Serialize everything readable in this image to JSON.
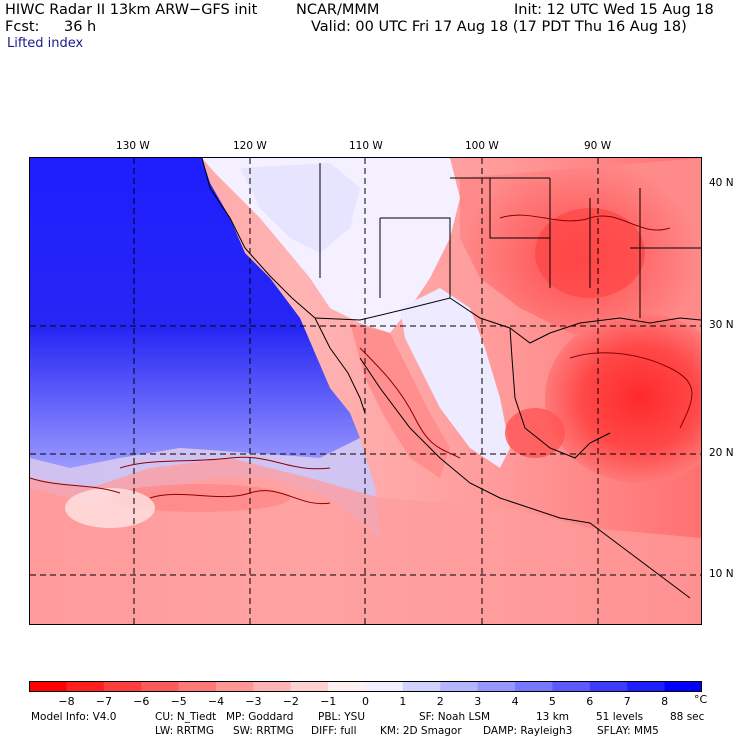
{
  "header": {
    "model": "HIWC Radar II 13km ARW−GFS init",
    "org": "NCAR/MMM",
    "init": "Init: 12 UTC Wed 15 Aug 18",
    "fcst_label": "Fcst:",
    "fcst_value": "36 h",
    "valid": "Valid: 00 UTC Fri 17 Aug 18 (17 PDT Thu 16 Aug 18)",
    "field": "Lifted index"
  },
  "map": {
    "lon_labels": [
      "130 W",
      "120 W",
      "110 W",
      "100 W",
      "90 W"
    ],
    "lat_labels": [
      "40 N",
      "30 N",
      "20 N",
      "10 N"
    ]
  },
  "colorbar": {
    "labels": [
      "−8",
      "−7",
      "−6",
      "−5",
      "−4",
      "−3",
      "−2",
      "−1",
      "0",
      "1",
      "2",
      "3",
      "4",
      "5",
      "6",
      "7",
      "8"
    ],
    "unit": "°C",
    "colors": [
      "#ff0000",
      "#ff1f1f",
      "#ff3d3d",
      "#ff5a5a",
      "#ff7878",
      "#ff9696",
      "#ffb4b4",
      "#ffd2d2",
      "#fff0f0",
      "#f0f0ff",
      "#d2d2ff",
      "#b4b4ff",
      "#9696ff",
      "#7878ff",
      "#5a5aff",
      "#3c3cff",
      "#1e1eff",
      "#0000ff"
    ]
  },
  "footer": {
    "line1": [
      "Model Info: V4.0",
      "CU: N_Tiedt",
      "MP: Goddard",
      "PBL: YSU",
      "SF: Noah LSM",
      "13 km",
      "51 levels",
      "88 sec"
    ],
    "line2": [
      "LW: RRTMG",
      "SW: RRTMG",
      "DIFF: full",
      "KM: 2D Smagor",
      "DAMP: Rayleigh3",
      "SFLAY: MM5"
    ]
  }
}
